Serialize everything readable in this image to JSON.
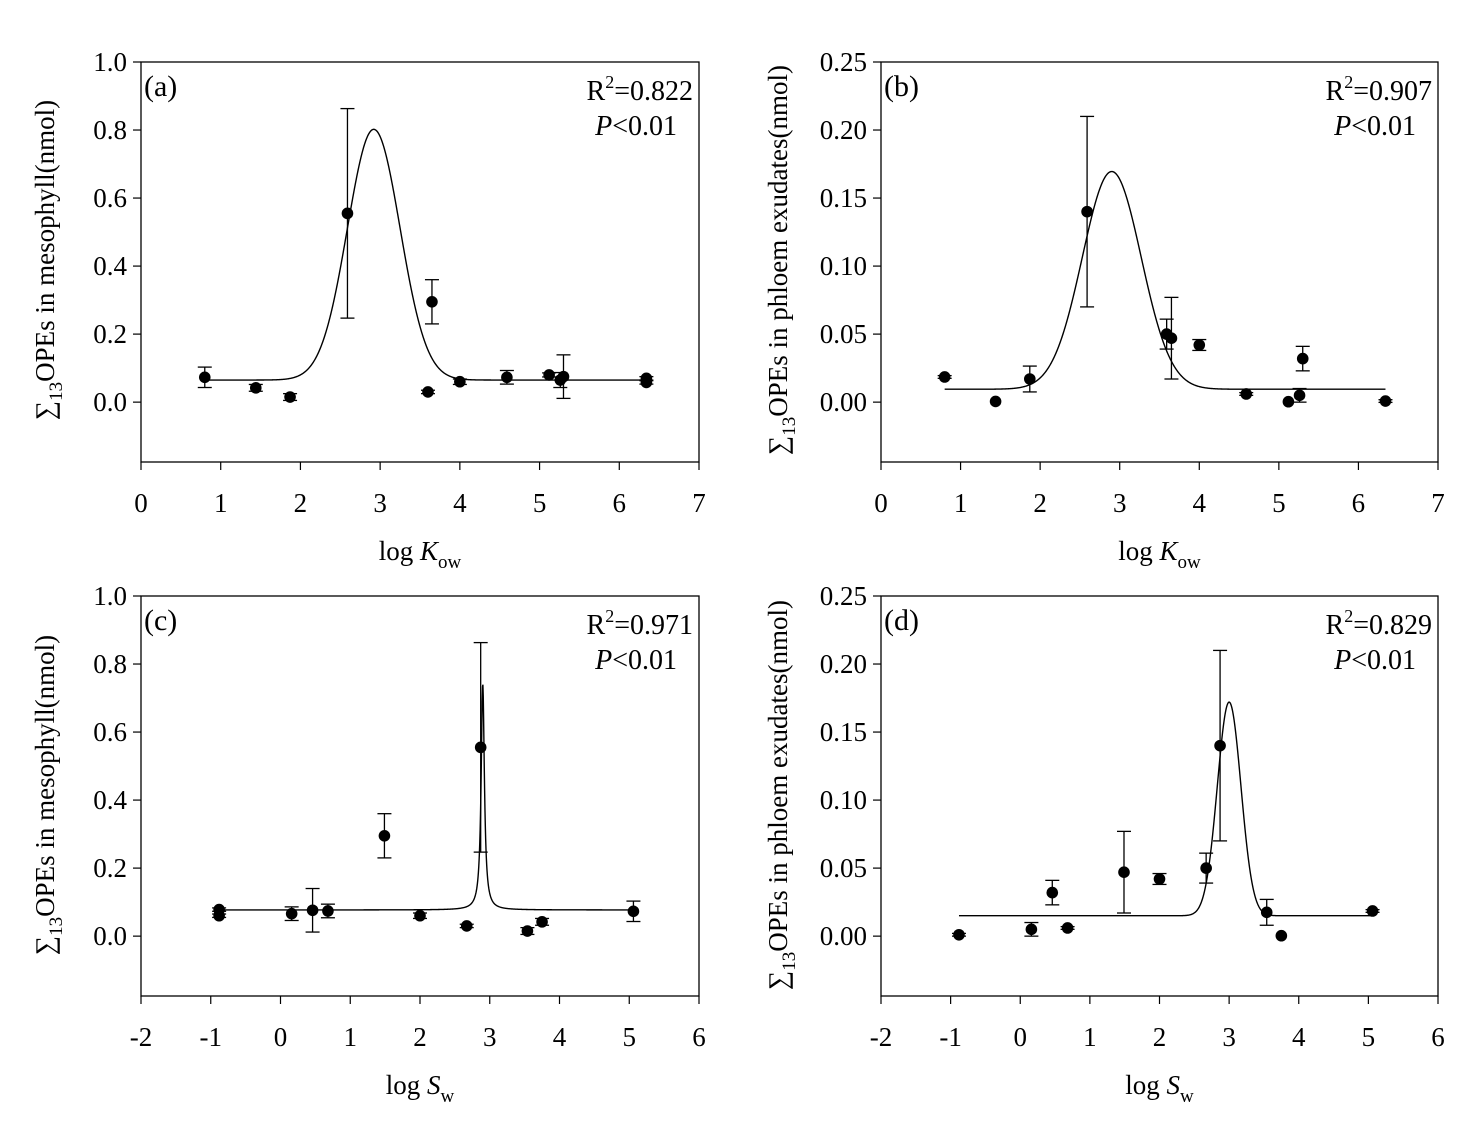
{
  "figure": {
    "sigma_symbol": "∑",
    "y_label_subscript": "13"
  },
  "chart_data": [
    {
      "id": "a",
      "type": "scatter",
      "panel_label": "(a)",
      "title": "",
      "xlabel_main": "log ",
      "xlabel_var": "K",
      "xlabel_sub": "ow",
      "ylabel_prefix": "OPEs in mesophyll(nmol)",
      "xlim": [
        0,
        7
      ],
      "ylim": [
        -0.176,
        1.0
      ],
      "xticks": [
        0,
        1,
        2,
        3,
        4,
        5,
        6,
        7
      ],
      "yticks": [
        0.0,
        0.2,
        0.4,
        0.6,
        0.8,
        1.0
      ],
      "ytick_labels": [
        "0.0",
        "0.2",
        "0.4",
        "0.6",
        "0.8",
        "1.0"
      ],
      "xtick_labels": [
        "0",
        "1",
        "2",
        "3",
        "4",
        "5",
        "6",
        "7"
      ],
      "grid": false,
      "stats": {
        "r2_label": "R",
        "r2_sup": "2",
        "r2_value": "=0.822",
        "p_var": "P",
        "p_value": "<0.01"
      },
      "points": [
        {
          "x": 0.8,
          "y": 0.073,
          "err": 0.03
        },
        {
          "x": 1.44,
          "y": 0.042,
          "err": 0.01
        },
        {
          "x": 1.87,
          "y": 0.015,
          "err": 0.01
        },
        {
          "x": 2.59,
          "y": 0.555,
          "err": 0.308
        },
        {
          "x": 3.6,
          "y": 0.03,
          "err": 0.005
        },
        {
          "x": 3.65,
          "y": 0.295,
          "err": 0.065
        },
        {
          "x": 4.0,
          "y": 0.06,
          "err": 0.008
        },
        {
          "x": 4.59,
          "y": 0.073,
          "err": 0.02
        },
        {
          "x": 5.12,
          "y": 0.08,
          "err": 0.006
        },
        {
          "x": 5.26,
          "y": 0.065,
          "err": 0.022
        },
        {
          "x": 5.3,
          "y": 0.075,
          "err": 0.064
        },
        {
          "x": 6.34,
          "y": 0.07,
          "err": 0.005
        },
        {
          "x": 6.34,
          "y": 0.058,
          "err": 0.005
        }
      ],
      "fit": {
        "model": "gaussian",
        "baseline": 0.065,
        "amplitude": 0.737,
        "center": 2.92,
        "width": 0.33,
        "x_range": [
          0.8,
          6.34
        ]
      }
    },
    {
      "id": "b",
      "type": "scatter",
      "panel_label": "(b)",
      "title": "",
      "xlabel_main": "log ",
      "xlabel_var": "K",
      "xlabel_sub": "ow",
      "ylabel_prefix": "OPEs in phloem exudates(nmol)",
      "xlim": [
        0,
        7
      ],
      "ylim": [
        -0.044,
        0.25
      ],
      "xticks": [
        0,
        1,
        2,
        3,
        4,
        5,
        6,
        7
      ],
      "yticks": [
        0.0,
        0.05,
        0.1,
        0.15,
        0.2,
        0.25
      ],
      "ytick_labels": [
        "0.00",
        "0.05",
        "0.10",
        "0.15",
        "0.20",
        "0.25"
      ],
      "xtick_labels": [
        "0",
        "1",
        "2",
        "3",
        "4",
        "5",
        "6",
        "7"
      ],
      "grid": false,
      "stats": {
        "r2_label": "R",
        "r2_sup": "2",
        "r2_value": "=0.907",
        "p_var": "P",
        "p_value": "<0.01"
      },
      "points": [
        {
          "x": 0.8,
          "y": 0.0185,
          "err": 0.001
        },
        {
          "x": 1.44,
          "y": 0.0005,
          "err": 0.0
        },
        {
          "x": 1.87,
          "y": 0.017,
          "err": 0.0095
        },
        {
          "x": 2.59,
          "y": 0.14,
          "err": 0.07
        },
        {
          "x": 3.59,
          "y": 0.05,
          "err": 0.011
        },
        {
          "x": 3.65,
          "y": 0.047,
          "err": 0.03
        },
        {
          "x": 4.0,
          "y": 0.042,
          "err": 0.004
        },
        {
          "x": 4.59,
          "y": 0.006,
          "err": 0.001
        },
        {
          "x": 5.12,
          "y": 0.0003,
          "err": 0.0
        },
        {
          "x": 5.26,
          "y": 0.005,
          "err": 0.005
        },
        {
          "x": 5.3,
          "y": 0.032,
          "err": 0.009
        },
        {
          "x": 6.34,
          "y": 0.0008,
          "err": 0.001
        }
      ],
      "fit": {
        "model": "gaussian",
        "baseline": 0.0095,
        "amplitude": 0.16,
        "center": 2.9,
        "width": 0.37,
        "x_range": [
          0.8,
          6.34
        ]
      }
    },
    {
      "id": "c",
      "type": "scatter",
      "panel_label": "(c)",
      "title": "",
      "xlabel_main": "log ",
      "xlabel_var": "S",
      "xlabel_sub": "w",
      "ylabel_prefix": "OPEs in mesophyll(nmol)",
      "xlim": [
        -2,
        6
      ],
      "ylim": [
        -0.176,
        1.0
      ],
      "xticks": [
        -2,
        -1,
        0,
        1,
        2,
        3,
        4,
        5,
        6
      ],
      "yticks": [
        0.0,
        0.2,
        0.4,
        0.6,
        0.8,
        1.0
      ],
      "ytick_labels": [
        "0.0",
        "0.2",
        "0.4",
        "0.6",
        "0.8",
        "1.0"
      ],
      "xtick_labels": [
        "-2",
        "-1",
        "0",
        "1",
        "2",
        "3",
        "4",
        "5",
        "6"
      ],
      "grid": false,
      "stats": {
        "r2_label": "R",
        "r2_sup": "2",
        "r2_value": "=0.971",
        "p_var": "P",
        "p_value": "<0.01"
      },
      "points": [
        {
          "x": -0.88,
          "y": 0.078,
          "err": 0.005
        },
        {
          "x": -0.88,
          "y": 0.06,
          "err": 0.005
        },
        {
          "x": 0.16,
          "y": 0.066,
          "err": 0.02
        },
        {
          "x": 0.46,
          "y": 0.076,
          "err": 0.064
        },
        {
          "x": 0.68,
          "y": 0.074,
          "err": 0.02
        },
        {
          "x": 1.49,
          "y": 0.295,
          "err": 0.065
        },
        {
          "x": 2.0,
          "y": 0.06,
          "err": 0.008
        },
        {
          "x": 2.67,
          "y": 0.03,
          "err": 0.005
        },
        {
          "x": 2.87,
          "y": 0.555,
          "err": 0.308
        },
        {
          "x": 3.54,
          "y": 0.015,
          "err": 0.01
        },
        {
          "x": 3.75,
          "y": 0.042,
          "err": 0.01
        },
        {
          "x": 5.06,
          "y": 0.073,
          "err": 0.03
        }
      ],
      "fit": {
        "model": "lorentzian",
        "baseline": 0.077,
        "amplitude": 0.665,
        "center": 2.9,
        "width": 0.028,
        "x_range": [
          -0.88,
          5.06
        ]
      }
    },
    {
      "id": "d",
      "type": "scatter",
      "panel_label": "(d)",
      "title": "",
      "xlabel_main": "log ",
      "xlabel_var": "S",
      "xlabel_sub": "w",
      "ylabel_prefix": "OPEs in phloem exudates(nmol)",
      "xlim": [
        -2,
        6
      ],
      "ylim": [
        -0.044,
        0.25
      ],
      "xticks": [
        -2,
        -1,
        0,
        1,
        2,
        3,
        4,
        5,
        6
      ],
      "yticks": [
        0.0,
        0.05,
        0.1,
        0.15,
        0.2,
        0.25
      ],
      "ytick_labels": [
        "0.00",
        "0.05",
        "0.10",
        "0.15",
        "0.20",
        "0.25"
      ],
      "xtick_labels": [
        "-2",
        "-1",
        "0",
        "1",
        "2",
        "3",
        "4",
        "5",
        "6"
      ],
      "grid": false,
      "stats": {
        "r2_label": "R",
        "r2_sup": "2",
        "r2_value": "=0.829",
        "p_var": "P",
        "p_value": "<0.01"
      },
      "points": [
        {
          "x": -0.88,
          "y": 0.001,
          "err": 0.001
        },
        {
          "x": 0.16,
          "y": 0.005,
          "err": 0.005
        },
        {
          "x": 0.46,
          "y": 0.032,
          "err": 0.009
        },
        {
          "x": 0.68,
          "y": 0.006,
          "err": 0.001
        },
        {
          "x": 1.49,
          "y": 0.047,
          "err": 0.03
        },
        {
          "x": 2.0,
          "y": 0.042,
          "err": 0.004
        },
        {
          "x": 2.67,
          "y": 0.05,
          "err": 0.011
        },
        {
          "x": 2.87,
          "y": 0.14,
          "err": 0.07
        },
        {
          "x": 3.54,
          "y": 0.0175,
          "err": 0.0095
        },
        {
          "x": 3.75,
          "y": 0.0003,
          "err": 0.0
        },
        {
          "x": 5.06,
          "y": 0.0185,
          "err": 0.001
        }
      ],
      "fit": {
        "model": "gaussian",
        "baseline": 0.015,
        "amplitude": 0.157,
        "center": 3.0,
        "width": 0.17,
        "x_range": [
          -0.88,
          5.06
        ]
      }
    }
  ]
}
